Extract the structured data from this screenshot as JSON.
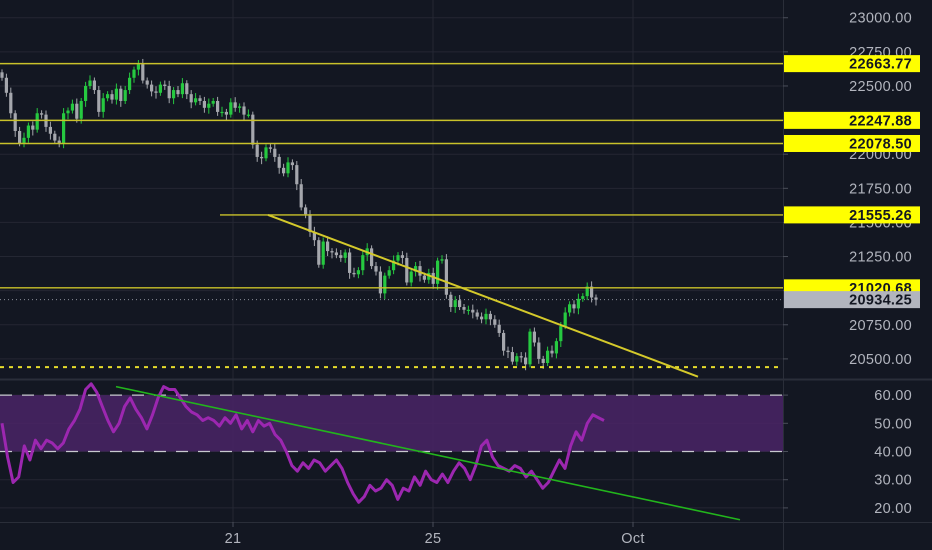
{
  "theme": {
    "background": "#131722",
    "grid": "#242733",
    "axis_text": "#b2b5be",
    "level_line": "#c9c22a",
    "trendline": "#d4c92b",
    "support_dotted": "#e6dc2c",
    "price_tag_bg": "#ffff00",
    "current_tag_bg": "#b2b5be",
    "candle_up": "#26c940",
    "candle_down": "#a5a7ad",
    "rsi_line": "#9c27b0",
    "rsi_band": "#4a2466",
    "rsi_trendline": "#22b51c",
    "rsi_dash": "#c7c9cf"
  },
  "price_axis": {
    "ticks": [
      "23000.00",
      "22750.00",
      "22500.00",
      "22250.00",
      "22000.00",
      "21750.00",
      "21500.00",
      "21250.00",
      "21000.00",
      "20750.00",
      "20500.00"
    ],
    "tick_values": [
      23000,
      22750,
      22500,
      22250,
      22000,
      21750,
      21500,
      21250,
      21000,
      20750,
      20500
    ]
  },
  "time_axis": {
    "labels": [
      "21",
      "25",
      "Oct"
    ]
  },
  "level_tags": [
    {
      "text": "22663.77",
      "value": 22663.77
    },
    {
      "text": "22247.88",
      "value": 22247.88
    },
    {
      "text": "22078.50",
      "value": 22078.5
    },
    {
      "text": "21555.26",
      "value": 21555.26
    },
    {
      "text": "21020.68",
      "value": 21020.68
    }
  ],
  "current_price": {
    "text": "20934.25",
    "value": 20934.25
  },
  "support_level": {
    "value": 20440
  },
  "rsi_panel": {
    "ticks": [
      "60.00",
      "50.00",
      "40.00",
      "30.00",
      "20.00"
    ],
    "tick_values": [
      60,
      50,
      40,
      30,
      20
    ],
    "band": [
      40,
      60
    ]
  },
  "chart_data": {
    "type": "candlestick",
    "symbol_quote": "price",
    "price_range": [
      20360,
      23130
    ],
    "rsi_range": [
      15,
      65
    ],
    "closes": [
      22560,
      22450,
      22300,
      22170,
      22080,
      22120,
      22210,
      22180,
      22300,
      22290,
      22200,
      22150,
      22100,
      22080,
      22300,
      22320,
      22370,
      22260,
      22390,
      22500,
      22540,
      22470,
      22310,
      22410,
      22440,
      22400,
      22480,
      22390,
      22470,
      22560,
      22620,
      22660,
      22540,
      22510,
      22460,
      22450,
      22510,
      22500,
      22410,
      22470,
      22440,
      22520,
      22440,
      22380,
      22410,
      22390,
      22340,
      22370,
      22390,
      22310,
      22310,
      22290,
      22380,
      22340,
      22350,
      22290,
      22290,
      22070,
      21980,
      21970,
      22050,
      22040,
      21980,
      21900,
      21860,
      21940,
      21920,
      21780,
      21610,
      21560,
      21430,
      21370,
      21190,
      21360,
      21290,
      21280,
      21260,
      21240,
      21280,
      21130,
      21120,
      21150,
      21260,
      21310,
      21180,
      21140,
      20980,
      21110,
      21150,
      21220,
      21260,
      21240,
      21060,
      21140,
      21180,
      21110,
      21080,
      21130,
      21050,
      21220,
      21230,
      20970,
      20880,
      20930,
      20880,
      20860,
      20860,
      20840,
      20810,
      20790,
      20830,
      20790,
      20750,
      20690,
      20560,
      20550,
      20480,
      20520,
      20510,
      20460,
      20700,
      20620,
      20500,
      20470,
      20560,
      20540,
      20630,
      20740,
      20840,
      20900,
      20870,
      20940,
      20960,
      21030,
      20950,
      20934
    ],
    "rsi": [
      50,
      38,
      29,
      31,
      42,
      37,
      44,
      41,
      44,
      43,
      41,
      43,
      48,
      51,
      55,
      62,
      64,
      61,
      56,
      51,
      47,
      50,
      56,
      59,
      55,
      52,
      48,
      53,
      59,
      63,
      62,
      62,
      59,
      56,
      54,
      53,
      51,
      52,
      51,
      49,
      52,
      50,
      53,
      48,
      51,
      47,
      51,
      49,
      50,
      46,
      44,
      40,
      35,
      33,
      36,
      34,
      37,
      36,
      33,
      35,
      37,
      34,
      29,
      25,
      22,
      24,
      28,
      26,
      27,
      30,
      28,
      23,
      27,
      26,
      31,
      28,
      33,
      30,
      29,
      32,
      29,
      33,
      36,
      34,
      30,
      35,
      42,
      44,
      38,
      35,
      34,
      33,
      35,
      34,
      31,
      33,
      30,
      27,
      29,
      33,
      37,
      34,
      42,
      47,
      44,
      50,
      53,
      52,
      51
    ]
  }
}
